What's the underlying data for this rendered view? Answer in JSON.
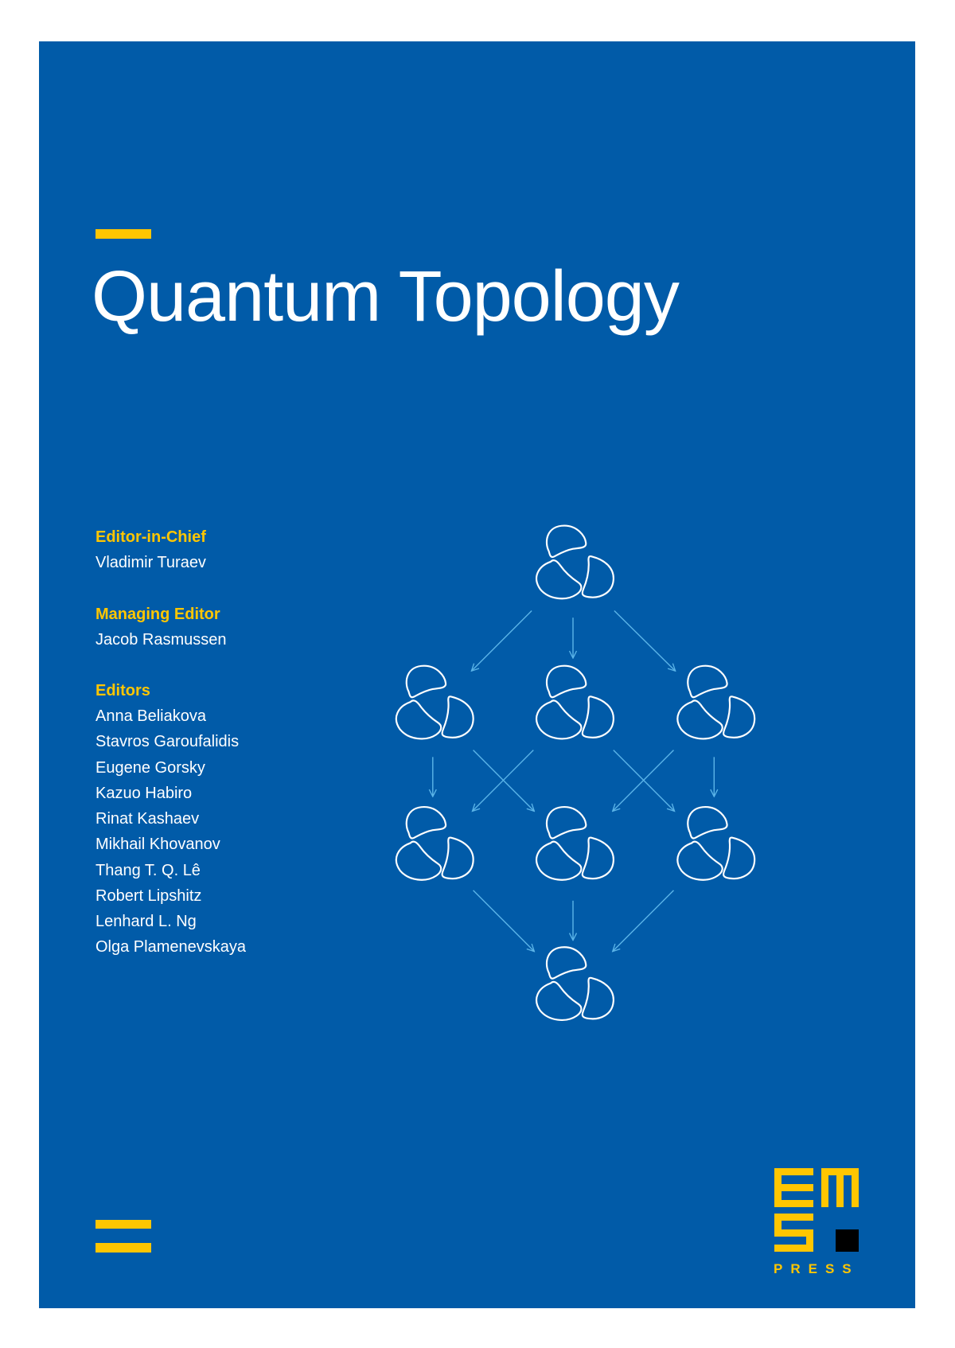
{
  "journal": {
    "title": "Quantum Topology"
  },
  "board": {
    "editor_in_chief_heading": "Editor-in-Chief",
    "editor_in_chief": "Vladimir Turaev",
    "managing_editor_heading": "Managing Editor",
    "managing_editor": "Jacob Rasmussen",
    "editors_heading": "Editors",
    "editors": [
      "Anna Beliakova",
      "Stavros Garoufalidis",
      "Eugene Gorsky",
      "Kazuo Habiro",
      "Rinat Kashaev",
      "Mikhail Khovanov",
      "Thang T. Q. Lê",
      "Robert Lipshitz",
      "Lenhard L. Ng",
      "Olga Plamenevskaya"
    ]
  },
  "publisher": {
    "logo_letters": "EMS",
    "logo_subtitle": "PRESS"
  },
  "colors": {
    "background": "#015BA8",
    "accent": "#FFC600",
    "arrow": "#5BB4E8",
    "knot": "#FFFFFF"
  }
}
